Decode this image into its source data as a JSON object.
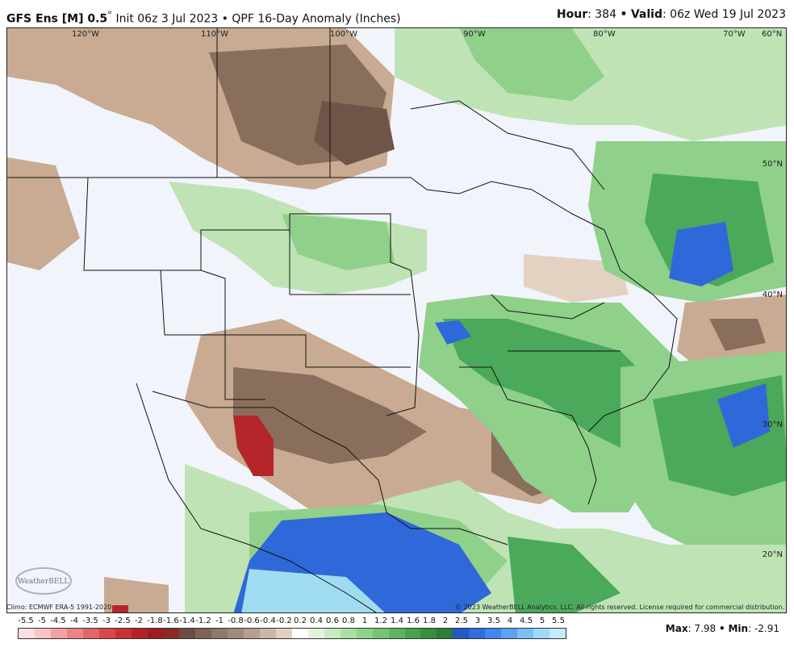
{
  "header": {
    "model": "GFS Ens [M] 0.5",
    "degree": "°",
    "init": "Init 06z 3 Jul 2023",
    "bullet": "•",
    "product": "QPF 16-Day Anomaly (Inches)",
    "hour_label": "Hour",
    "hour_value": ": 384",
    "valid_label": "Valid",
    "valid_value": ": 06z Wed 19 Jul 2023"
  },
  "map": {
    "longitudes": [
      "120°W",
      "110°W",
      "100°W",
      "90°W",
      "80°W",
      "70°W",
      "60°N"
    ],
    "latitudes": [
      "50°N",
      "40°N",
      "30°N",
      "20°N"
    ],
    "colors": {
      "dry_strong": "#b4262b",
      "dry_mid": "#8a6e5c",
      "dry_light": "#c8ab92",
      "dry_faint": "#e3d2c2",
      "neutral": "#f2f4fb",
      "wet_faint": "#bfe3b5",
      "wet_light": "#8fd08b",
      "wet_mid": "#4aa95a",
      "wet_strong": "#2e8b3e",
      "blue": "#2f68d8",
      "light_blue": "#9fdcf2"
    }
  },
  "footer": {
    "climo": "Climo: ECMWF ERA-5 1991-2020",
    "copyright": "© 2023 WeatherBELL Analytics, LLC. All rights reserved. License required for commercial distribution.",
    "logo_text": "WeatherBELL"
  },
  "scale": {
    "labels": [
      "-5.5",
      "-5",
      "-4.5",
      "-4",
      "-3.5",
      "-3",
      "-2.5",
      "-2",
      "-1.8",
      "-1.6",
      "-1.4",
      "-1.2",
      "-1",
      "-0.8",
      "-0.6",
      "-0.4",
      "-0.2",
      "0.2",
      "0.4",
      "0.6",
      "0.8",
      "1",
      "1.2",
      "1.4",
      "1.6",
      "1.8",
      "2",
      "2.5",
      "3",
      "3.5",
      "4",
      "4.5",
      "5",
      "5.5"
    ],
    "colors": [
      "#fde0e0",
      "#f9c4c4",
      "#f3a2a2",
      "#ec8383",
      "#e36565",
      "#d84848",
      "#c93232",
      "#b42226",
      "#a01b1e",
      "#8a2a22",
      "#6f4a40",
      "#7d6357",
      "#8f7769",
      "#a38b7b",
      "#b89f8c",
      "#cdb6a3",
      "#e1d0c1",
      "#ffffff",
      "#e2f3dd",
      "#c8eac0",
      "#acdfa4",
      "#90d38a",
      "#76c573",
      "#5db55f",
      "#46a34d",
      "#358f3d",
      "#2d7d36",
      "#2457c8",
      "#2f6de0",
      "#3f86ee",
      "#5aa2f3",
      "#7bbff6",
      "#9fd8f8",
      "#c2ecfb"
    ]
  },
  "stats": {
    "max_label": "Max",
    "max_value": ": 7.98",
    "min_label": "Min",
    "min_value": ": -2.91",
    "bullet": "•"
  }
}
